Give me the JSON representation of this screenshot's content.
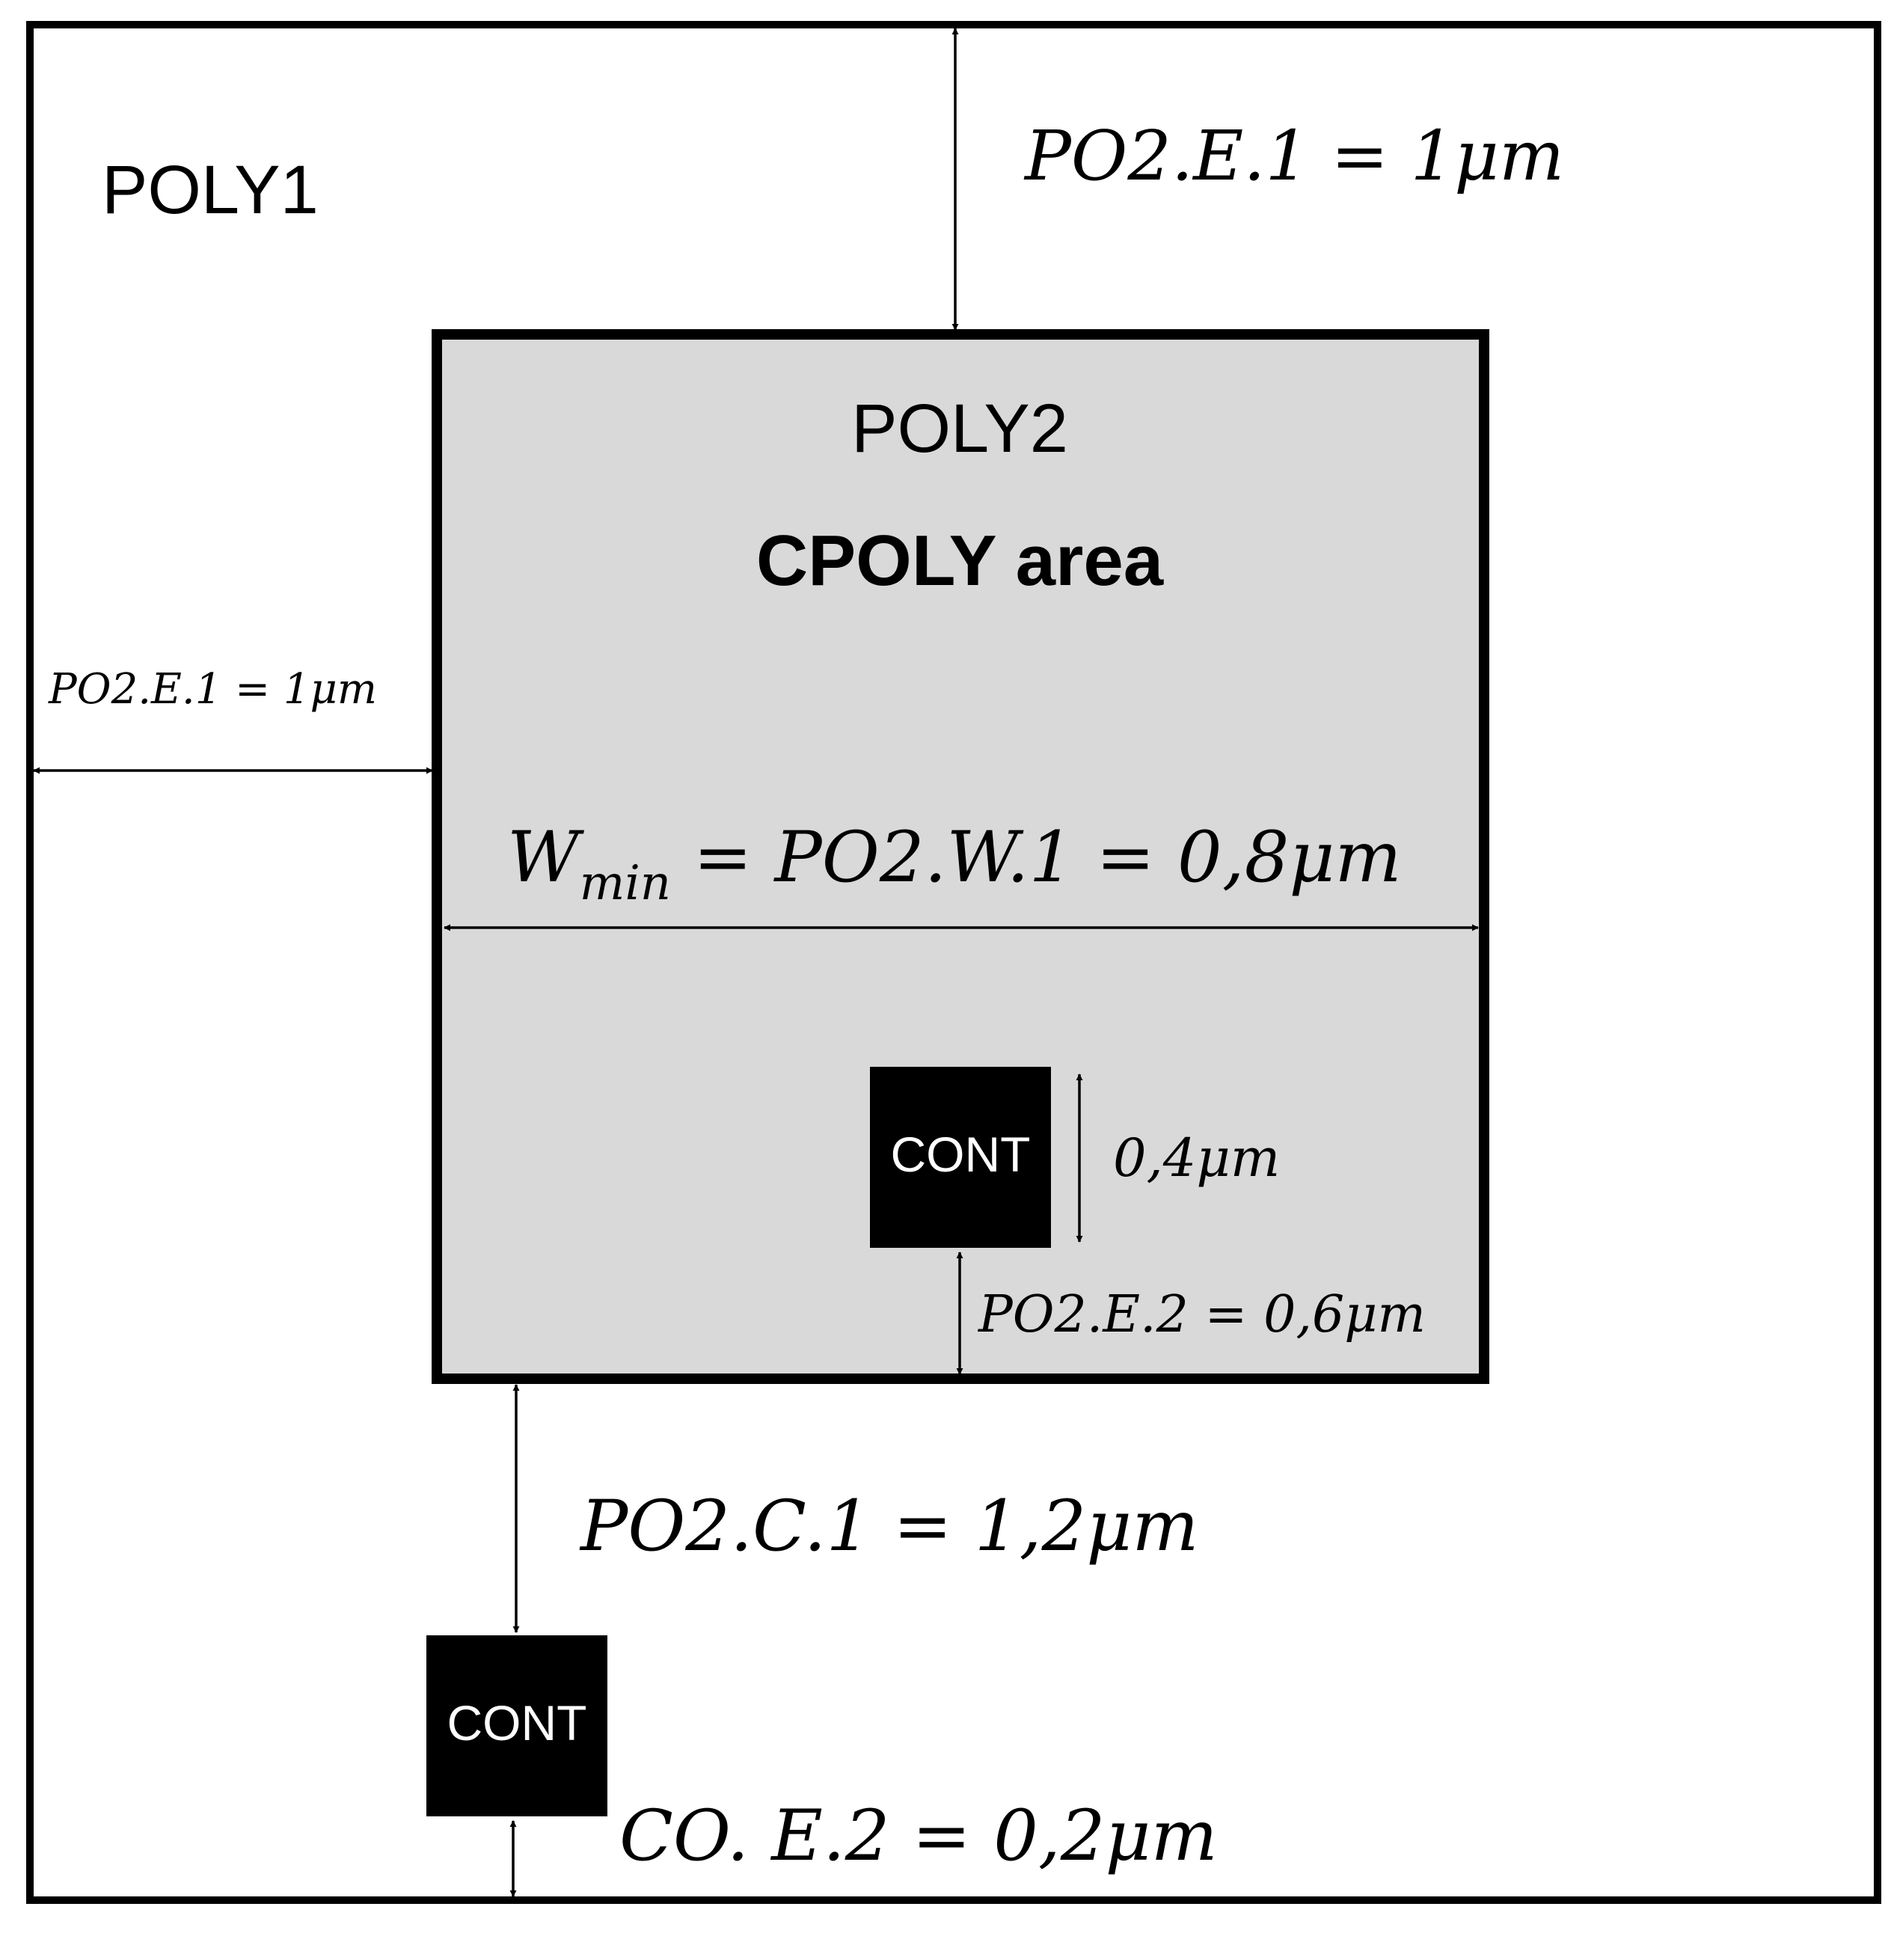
{
  "colors": {
    "stroke": "#000000",
    "background": "#ffffff",
    "poly2_fill": "#d9d9d9",
    "contact_fill": "#000000",
    "contact_text": "#ffffff"
  },
  "labels": {
    "poly1": "POLY1",
    "poly2": "POLY2",
    "cpoly_area": "CPOLY area",
    "contact_inner": "CONT",
    "contact_outer": "CONT"
  },
  "dimensions": {
    "po2_e1_top": "PO2.E.1 = 1μm",
    "po2_e1_left": "PO2.E.1 = 1μm",
    "wmin_main": "W",
    "wmin_sub": "min",
    "wmin_rest": " = PO2.W.1 = 0,8μm",
    "contact_size": "0,4μm",
    "po2_e2": "PO2.E.2 = 0,6μm",
    "po2_c1": "PO2.C.1 = 1,2μm",
    "co_e2": "CO. E.2 = 0,2μm"
  }
}
